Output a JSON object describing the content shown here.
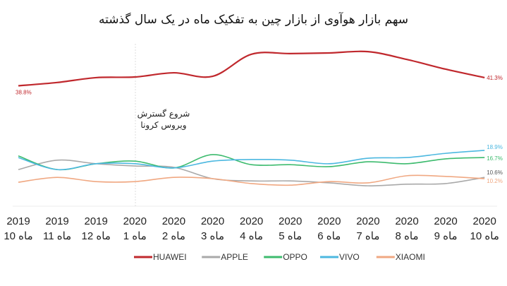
{
  "chart_data": {
    "type": "line",
    "title": "سهم بازار هوآوی از بازار چین به تفکیک ماه در یک سال گذشته",
    "xlabel": "",
    "ylabel": "",
    "categories": [
      {
        "year": "2019",
        "month": "ماه 10"
      },
      {
        "year": "2019",
        "month": "ماه 11"
      },
      {
        "year": "2019",
        "month": "ماه 12"
      },
      {
        "year": "2020",
        "month": "ماه 1"
      },
      {
        "year": "2020",
        "month": "ماه 2"
      },
      {
        "year": "2020",
        "month": "ماه 3"
      },
      {
        "year": "2020",
        "month": "ماه 4"
      },
      {
        "year": "2020",
        "month": "ماه 5"
      },
      {
        "year": "2020",
        "month": "ماه 6"
      },
      {
        "year": "2020",
        "month": "ماه 7"
      },
      {
        "year": "2020",
        "month": "ماه 8"
      },
      {
        "year": "2020",
        "month": "ماه 9"
      },
      {
        "year": "2020",
        "month": "ماه 10"
      }
    ],
    "ylim": [
      7,
      50
    ],
    "grid": false,
    "legend_position": "bottom-center",
    "series": [
      {
        "name": "HUAWEI",
        "color": "#c0282d",
        "values": [
          38.8,
          39.8,
          41.3,
          41.5,
          42.8,
          41.7,
          48.5,
          48.7,
          48.9,
          49.3,
          46.9,
          43.9,
          41.3
        ],
        "start_label": "38.8%",
        "end_label": "41.3%"
      },
      {
        "name": "APPLE",
        "color": "#a9a9a9",
        "values": [
          13.0,
          15.9,
          14.8,
          14.1,
          13.7,
          10.2,
          9.5,
          9.5,
          8.9,
          8.0,
          8.5,
          8.7,
          10.6
        ],
        "end_label": "10.6%"
      },
      {
        "name": "OPPO",
        "color": "#3dbb6e",
        "values": [
          17.2,
          13.0,
          14.8,
          15.6,
          13.5,
          17.6,
          14.5,
          14.5,
          13.9,
          15.4,
          14.8,
          16.3,
          16.7
        ],
        "end_label": "16.7%"
      },
      {
        "name": "VIVO",
        "color": "#4cb8e0",
        "values": [
          16.7,
          13.0,
          14.8,
          14.8,
          13.5,
          15.6,
          16.1,
          15.9,
          14.8,
          16.5,
          16.7,
          18.0,
          18.9
        ],
        "end_label": "18.9%"
      },
      {
        "name": "XIAOMI",
        "color": "#f0a882",
        "values": [
          9.1,
          10.6,
          9.3,
          9.3,
          10.6,
          10.2,
          8.7,
          8.2,
          9.3,
          8.9,
          11.1,
          10.9,
          10.2
        ],
        "end_label": "10.2%"
      }
    ],
    "annotation": {
      "at_category": 3,
      "lines": [
        "شروع گسترش",
        "ویروس کرونا"
      ]
    }
  }
}
